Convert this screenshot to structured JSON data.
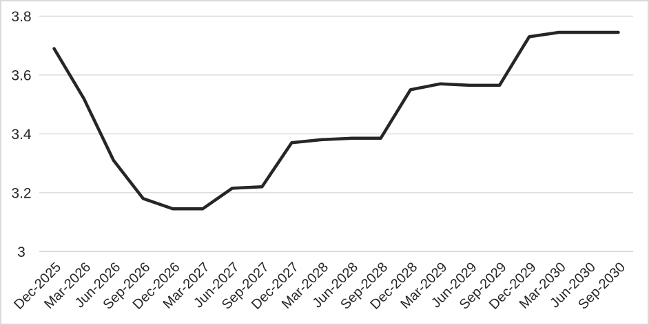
{
  "chart_data": {
    "type": "line",
    "title": "",
    "categories": [
      "Dec-2025",
      "Mar-2026",
      "Jun-2026",
      "Sep-2026",
      "Dec-2026",
      "Mar-2027",
      "Jun-2027",
      "Sep-2027",
      "Dec-2027",
      "Mar-2028",
      "Jun-2028",
      "Sep-2028",
      "Dec-2028",
      "Mar-2029",
      "Jun-2029",
      "Sep-2029",
      "Dec-2029",
      "Mar-2030",
      "Jun-2030",
      "Sep-2030"
    ],
    "values": [
      3.69,
      3.52,
      3.31,
      3.18,
      3.145,
      3.145,
      3.215,
      3.22,
      3.37,
      3.38,
      3.385,
      3.385,
      3.55,
      3.57,
      3.565,
      3.565,
      3.73,
      3.745,
      3.745,
      3.745
    ],
    "xlabel": "",
    "ylabel": "",
    "ylim": [
      3.0,
      3.8
    ],
    "yticks": [
      3.0,
      3.2,
      3.4,
      3.6,
      3.8
    ],
    "ytick_labels": [
      "3",
      "3.2",
      "3.4",
      "3.6",
      "3.8"
    ],
    "grid": true,
    "legend_position": "none",
    "x_label_rotation_deg": 45,
    "colors": {
      "series_line": "#262626",
      "gridline": "#d9d9d9",
      "axis_line": "#d3d3d3",
      "tick_label": "#262626",
      "chart_border": "#d9d9d9",
      "background": "#ffffff"
    }
  }
}
